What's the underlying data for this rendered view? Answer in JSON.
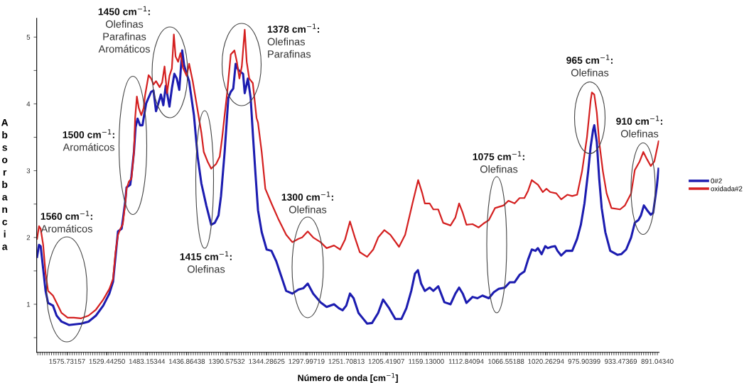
{
  "chart_data": {
    "type": "line",
    "xlabel": "Número de onda [cm$^{−1}$]",
    "ylabel": "Absorbancia",
    "xlim": [
      1611,
      889
    ],
    "xticks": [
      {
        "value": 1575.73157,
        "label": "1575.73157"
      },
      {
        "value": 1529.4425,
        "label": "1529.44250"
      },
      {
        "value": 1483.15344,
        "label": "1483.15344"
      },
      {
        "value": 1436.86438,
        "label": "1436.86438"
      },
      {
        "value": 1390.57532,
        "label": "1390.57532"
      },
      {
        "value": 1344.28625,
        "label": "1344.28625"
      },
      {
        "value": 1297.99719,
        "label": "1297.99719"
      },
      {
        "value": 1251.70813,
        "label": "1251.70813"
      },
      {
        "value": 1205.41907,
        "label": "1205.41907"
      },
      {
        "value": 1159.13,
        "label": "1159.13000"
      },
      {
        "value": 1112.84094,
        "label": "1112.84094"
      },
      {
        "value": 1066.55188,
        "label": "1066.55188"
      },
      {
        "value": 1020.26294,
        "label": "1020.26294"
      },
      {
        "value": 975.90399,
        "label": "975.90399"
      },
      {
        "value": 933.47369,
        "label": "933.47369"
      },
      {
        "value": 891.0434,
        "label": "891.04340"
      }
    ],
    "ylim": [
      0.28,
      5.28
    ],
    "yticks": [
      {
        "value": 0.5,
        "label": null
      },
      1,
      {
        "value": 1.5,
        "label": null
      },
      2,
      {
        "value": 2.5,
        "label": null
      },
      3,
      {
        "value": 3.5,
        "label": null
      },
      4,
      {
        "value": 4.5,
        "label": null
      },
      5
    ],
    "grid": false,
    "legend": "right",
    "marker": "none",
    "line_style": "solid",
    "series": [
      {
        "name": "0#2",
        "color": "#1c1cb0",
        "x": [
          1610.6,
          1608.3,
          1606.4,
          1603.5,
          1600.7,
          1597.8,
          1592.1,
          1587.9,
          1582.2,
          1573.6,
          1559.4,
          1550.9,
          1542.3,
          1533.8,
          1526.7,
          1522.4,
          1519.6,
          1516.7,
          1512.5,
          1511.1,
          1508.2,
          1506.8,
          1502.5,
          1501.1,
          1498.2,
          1496.3,
          1494.0,
          1491.1,
          1488.3,
          1484.0,
          1478.3,
          1475.5,
          1472.6,
          1469.8,
          1466.9,
          1464.1,
          1461.3,
          1457.0,
          1454.2,
          1451.3,
          1448.5,
          1445.6,
          1442.2,
          1440.0,
          1437.1,
          1434.2,
          1428.6,
          1424.3,
          1420.0,
          1414.3,
          1408.6,
          1404.4,
          1400.1,
          1397.2,
          1393.0,
          1388.7,
          1385.9,
          1383.0,
          1380.2,
          1377.3,
          1371.6,
          1369.7,
          1366.0,
          1362.8,
          1360.0,
          1357.2,
          1354.3,
          1350.0,
          1344.3,
          1338.7,
          1333.0,
          1327.3,
          1321.6,
          1314.5,
          1307.4,
          1301.7,
          1296.6,
          1290.3,
          1281.8,
          1274.7,
          1266.1,
          1260.4,
          1256.2,
          1251.9,
          1247.6,
          1243.4,
          1237.7,
          1227.7,
          1222.0,
          1214.9,
          1209.2,
          1202.1,
          1195.0,
          1187.9,
          1182.2,
          1176.5,
          1172.2,
          1168.8,
          1165.1,
          1160.8,
          1155.2,
          1150.9,
          1145.2,
          1138.1,
          1131.0,
          1125.3,
          1121.0,
          1116.8,
          1112.5,
          1105.4,
          1099.7,
          1094.0,
          1086.5,
          1080.8,
          1075.1,
          1068.0,
          1062.3,
          1056.6,
          1050.9,
          1045.3,
          1041.0,
          1036.7,
          1032.5,
          1029.6,
          1025.3,
          1021.1,
          1018.2,
          1014.0,
          1009.7,
          1006.9,
          1002.6,
          996.9,
          989.8,
          984.1,
          979.8,
          975.6,
          971.3,
          968.4,
          965.6,
          964.2,
          961.3,
          958.5,
          955.6,
          951.4,
          945.7,
          937.2,
          932.9,
          927.2,
          921.5,
          917.2,
          913.0,
          910.1,
          906.7,
          903.0,
          898.7,
          895.9,
          891.6,
          889.6
        ],
        "values": [
          1.71,
          1.89,
          1.87,
          1.53,
          1.2,
          1.02,
          0.98,
          0.83,
          0.74,
          0.69,
          0.71,
          0.74,
          0.83,
          0.98,
          1.16,
          1.34,
          1.71,
          2.09,
          2.13,
          2.26,
          2.55,
          2.75,
          2.79,
          2.92,
          3.28,
          3.65,
          3.78,
          3.68,
          3.68,
          4.01,
          4.18,
          4.2,
          3.89,
          4.01,
          4.14,
          3.98,
          4.27,
          3.96,
          4.23,
          4.45,
          4.38,
          4.21,
          4.8,
          4.58,
          4.45,
          4.34,
          3.83,
          3.21,
          2.81,
          2.48,
          2.19,
          2.22,
          2.33,
          2.62,
          3.28,
          4.09,
          4.18,
          4.23,
          4.6,
          4.51,
          4.45,
          4.16,
          4.38,
          4.09,
          3.5,
          2.95,
          2.41,
          2.08,
          1.82,
          1.8,
          1.64,
          1.42,
          1.2,
          1.16,
          1.22,
          1.24,
          1.31,
          1.16,
          1.03,
          0.96,
          1.0,
          0.94,
          0.91,
          0.98,
          1.16,
          1.09,
          0.87,
          0.71,
          0.72,
          0.87,
          1.07,
          0.94,
          0.78,
          0.78,
          0.94,
          1.2,
          1.46,
          1.51,
          1.31,
          1.2,
          1.25,
          1.2,
          1.27,
          1.03,
          1.0,
          1.16,
          1.25,
          1.16,
          1.02,
          1.11,
          1.09,
          1.13,
          1.09,
          1.18,
          1.23,
          1.25,
          1.33,
          1.33,
          1.44,
          1.49,
          1.67,
          1.82,
          1.8,
          1.84,
          1.75,
          1.87,
          1.84,
          1.86,
          1.87,
          1.8,
          1.73,
          1.8,
          1.8,
          1.98,
          2.19,
          2.51,
          2.99,
          3.36,
          3.61,
          3.68,
          3.43,
          2.88,
          2.44,
          2.08,
          1.8,
          1.74,
          1.75,
          1.82,
          2.0,
          2.22,
          2.26,
          2.33,
          2.48,
          2.41,
          2.34,
          2.37,
          2.77,
          3.03
        ]
      },
      {
        "name": "oxidada#2",
        "color": "#d42020",
        "x": [
          1610.6,
          1608.3,
          1606.4,
          1603.5,
          1600.7,
          1597.8,
          1592.1,
          1587.9,
          1582.2,
          1575.1,
          1567.9,
          1559.4,
          1550.9,
          1542.3,
          1533.8,
          1526.7,
          1522.4,
          1519.6,
          1516.7,
          1513.9,
          1511.1,
          1508.2,
          1506.8,
          1503.9,
          1501.1,
          1498.2,
          1496.8,
          1494.8,
          1492.6,
          1489.7,
          1486.9,
          1485.4,
          1481.2,
          1478.3,
          1475.5,
          1472.6,
          1468.4,
          1465.5,
          1462.7,
          1459.8,
          1457.0,
          1454.2,
          1451.9,
          1449.9,
          1447.0,
          1444.2,
          1441.3,
          1437.1,
          1434.2,
          1430.0,
          1425.7,
          1420.0,
          1417.2,
          1412.9,
          1408.6,
          1402.9,
          1398.7,
          1395.8,
          1393.0,
          1390.1,
          1385.9,
          1381.6,
          1378.8,
          1375.9,
          1373.1,
          1369.7,
          1367.4,
          1364.5,
          1360.3,
          1356.0,
          1354.3,
          1350.0,
          1345.8,
          1338.7,
          1330.1,
          1321.6,
          1314.5,
          1307.4,
          1303.1,
          1296.6,
          1290.3,
          1281.8,
          1274.7,
          1266.1,
          1259.0,
          1253.3,
          1247.6,
          1241.9,
          1236.2,
          1227.7,
          1220.6,
          1214.9,
          1207.8,
          1200.7,
          1190.7,
          1183.6,
          1175.1,
          1168.5,
          1163.7,
          1160.8,
          1155.2,
          1150.9,
          1145.2,
          1139.5,
          1131.0,
          1125.3,
          1121.0,
          1116.8,
          1112.5,
          1105.4,
          1098.3,
          1092.6,
          1086.5,
          1079.4,
          1069.4,
          1063.8,
          1056.6,
          1050.9,
          1045.3,
          1041.0,
          1036.7,
          1033.9,
          1029.6,
          1023.9,
          1019.7,
          1015.4,
          1008.3,
          1002.6,
          995.5,
          989.8,
          984.1,
          978.4,
          972.7,
          968.4,
          967.0,
          964.2,
          961.3,
          958.5,
          954.2,
          949.9,
          944.3,
          934.3,
          928.6,
          921.5,
          917.2,
          911.5,
          907.3,
          903.0,
          898.7,
          894.5,
          889.6
        ],
        "values": [
          1.98,
          2.17,
          2.13,
          1.89,
          1.46,
          1.2,
          1.13,
          1.02,
          0.87,
          0.8,
          0.8,
          0.79,
          0.83,
          0.92,
          1.07,
          1.23,
          1.38,
          1.78,
          2.04,
          2.13,
          2.2,
          2.52,
          2.73,
          2.84,
          2.88,
          3.28,
          3.79,
          4.11,
          3.94,
          3.83,
          3.94,
          4.12,
          4.43,
          4.38,
          4.29,
          4.34,
          4.25,
          4.32,
          4.56,
          4.16,
          4.42,
          4.53,
          5.04,
          4.71,
          4.63,
          4.76,
          4.54,
          4.42,
          4.6,
          4.34,
          4.01,
          3.57,
          3.28,
          3.14,
          3.03,
          3.1,
          3.21,
          3.5,
          3.83,
          4.16,
          4.74,
          4.8,
          4.63,
          4.38,
          4.56,
          5.11,
          4.63,
          4.38,
          4.31,
          3.79,
          3.72,
          3.28,
          2.73,
          2.51,
          2.26,
          2.04,
          1.93,
          1.98,
          2.0,
          2.09,
          2.0,
          1.93,
          1.84,
          1.88,
          1.82,
          1.97,
          2.24,
          2.0,
          1.78,
          1.71,
          1.82,
          2.0,
          2.11,
          2.04,
          1.86,
          2.04,
          2.51,
          2.86,
          2.66,
          2.51,
          2.51,
          2.42,
          2.42,
          2.22,
          2.18,
          2.3,
          2.51,
          2.37,
          2.19,
          2.2,
          2.15,
          2.21,
          2.26,
          2.44,
          2.48,
          2.55,
          2.51,
          2.59,
          2.59,
          2.7,
          2.86,
          2.83,
          2.79,
          2.68,
          2.73,
          2.68,
          2.66,
          2.57,
          2.64,
          2.62,
          2.64,
          2.99,
          3.5,
          4.05,
          4.17,
          4.14,
          3.87,
          3.43,
          2.99,
          2.66,
          2.44,
          2.42,
          2.48,
          2.66,
          3.01,
          3.14,
          3.28,
          3.17,
          3.07,
          3.14,
          3.44
        ]
      }
    ],
    "annotations": [
      "1560 cm$^{−1}$:\nAromáticos",
      "1500 cm$^{−1}$:\nAromáticos",
      "1450 cm$^{−1}$:\nOlefinas\nParafinas\nAromáticos",
      "1415 cm$^{−1}$:\nOlefinas",
      "1378 cm$^{−1}$:\nOlefinas\nParafinas",
      "1300 cm$^{−1}$:\nOlefinas",
      "1075 cm$^{−1}$:\nOlefinas",
      "965 cm$^{−1}$:\nOlefinas",
      "910 cm$^{−1}$:\nOlefinas"
    ]
  }
}
